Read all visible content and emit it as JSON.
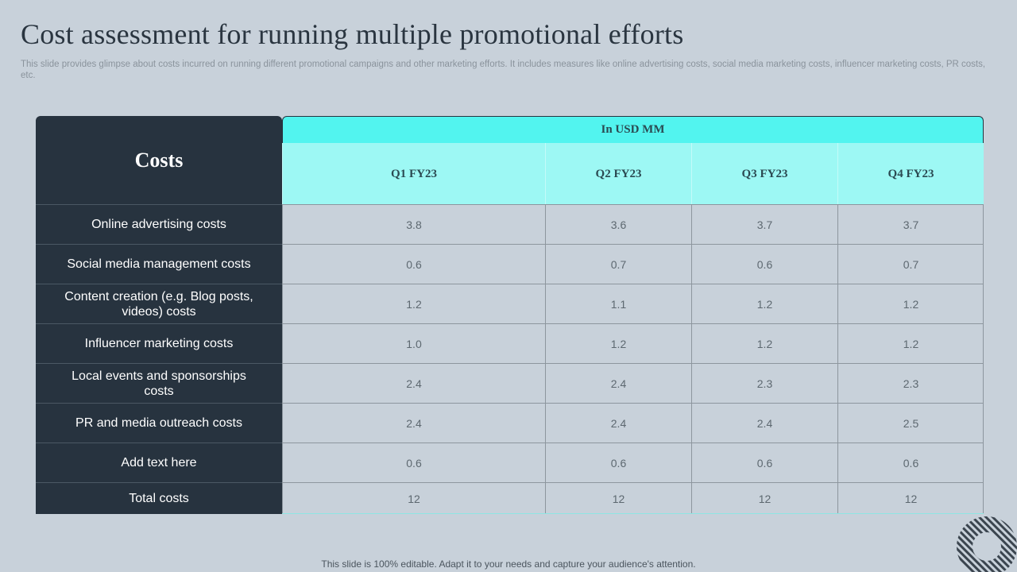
{
  "title": "Cost assessment for running multiple promotional efforts",
  "subtitle": "This slide provides glimpse about costs incurred on running different promotional campaigns and other marketing efforts. It includes measures like online advertising costs, social media marketing costs, influencer marketing costs, PR costs, etc.",
  "table": {
    "costs_header": "Costs",
    "unit_header": "In USD MM",
    "quarters": [
      "Q1 FY23",
      "Q2 FY23",
      "Q3 FY23",
      "Q4 FY23"
    ],
    "rows": [
      {
        "label": "Online advertising costs",
        "values": [
          "3.8",
          "3.6",
          "3.7",
          "3.7"
        ]
      },
      {
        "label": "Social media management costs",
        "values": [
          "0.6",
          "0.7",
          "0.6",
          "0.7"
        ]
      },
      {
        "label": "Content creation (e.g. Blog posts, videos) costs",
        "values": [
          "1.2",
          "1.1",
          "1.2",
          "1.2"
        ]
      },
      {
        "label": "Influencer  marketing costs",
        "values": [
          "1.0",
          "1.2",
          "1.2",
          "1.2"
        ]
      },
      {
        "label": "Local events  and sponsorships costs",
        "values": [
          "2.4",
          "2.4",
          "2.3",
          "2.3"
        ]
      },
      {
        "label": "PR and media outreach  costs",
        "values": [
          "2.4",
          "2.4",
          "2.4",
          "2.5"
        ]
      },
      {
        "label": "Add text here",
        "values": [
          "0.6",
          "0.6",
          "0.6",
          "0.6"
        ]
      },
      {
        "label": "Total costs",
        "values": [
          "12",
          "12",
          "12",
          "12"
        ]
      }
    ]
  },
  "footer": "This slide is 100% editable. Adapt it to your needs and capture your audience's attention.",
  "colors": {
    "background": "#c8d1da",
    "dark_column": "#27333f",
    "header_cyan": "#52f4ef",
    "subheader_cyan": "#9df8f4"
  },
  "icons": {
    "corner_decoration": "striped-circle-decoration"
  }
}
